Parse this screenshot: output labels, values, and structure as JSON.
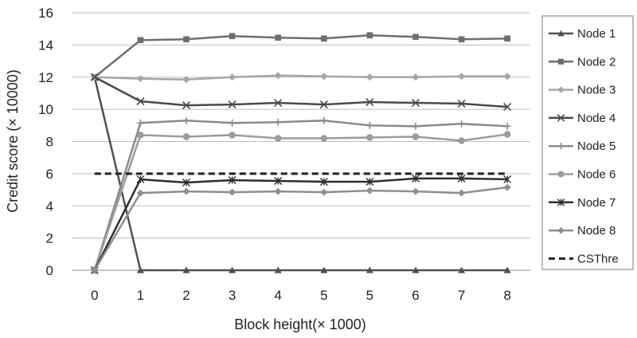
{
  "chart_data": {
    "type": "line",
    "xlabel": "Block height(× 1000)",
    "ylabel": "Credit score (× 10000)",
    "categories": [
      "0",
      "1",
      "2",
      "3",
      "4",
      "5",
      "5",
      "6",
      "7",
      "8"
    ],
    "ylim": [
      0,
      16
    ],
    "yticks": [
      0,
      2,
      4,
      6,
      8,
      10,
      12,
      14,
      16
    ],
    "grid": "horizontal",
    "legend_position": "right",
    "series": [
      {
        "name": "Node 1",
        "marker": "triangle",
        "color": "#505050",
        "dash": "solid",
        "values": [
          12,
          0,
          0,
          0,
          0,
          0,
          0,
          0,
          0,
          0
        ]
      },
      {
        "name": "Node 2",
        "marker": "square",
        "color": "#6e6e6e",
        "dash": "solid",
        "values": [
          12,
          14.3,
          14.35,
          14.55,
          14.45,
          14.4,
          14.6,
          14.5,
          14.35,
          14.4
        ]
      },
      {
        "name": "Node 3",
        "marker": "diamond",
        "color": "#a6a6a6",
        "dash": "solid",
        "values": [
          12,
          11.9,
          11.85,
          12.0,
          12.1,
          12.05,
          12.0,
          12.0,
          12.05,
          12.05
        ]
      },
      {
        "name": "Node 4",
        "marker": "x",
        "color": "#4a4a4a",
        "dash": "solid",
        "values": [
          12,
          10.5,
          10.25,
          10.3,
          10.4,
          10.3,
          10.45,
          10.4,
          10.35,
          10.15
        ]
      },
      {
        "name": "Node 5",
        "marker": "plus",
        "color": "#8a8a8a",
        "dash": "solid",
        "values": [
          0,
          9.15,
          9.3,
          9.15,
          9.2,
          9.3,
          9.0,
          8.95,
          9.1,
          8.95
        ]
      },
      {
        "name": "Node 6",
        "marker": "circle",
        "color": "#9c9c9c",
        "dash": "solid",
        "values": [
          0,
          8.4,
          8.3,
          8.4,
          8.2,
          8.2,
          8.25,
          8.3,
          8.05,
          8.45
        ]
      },
      {
        "name": "Node 7",
        "marker": "asterisk",
        "color": "#2e2e2e",
        "dash": "solid",
        "values": [
          0,
          5.65,
          5.45,
          5.6,
          5.55,
          5.5,
          5.5,
          5.7,
          5.7,
          5.65
        ]
      },
      {
        "name": "Node 8",
        "marker": "diamond",
        "color": "#8e8e8e",
        "dash": "solid",
        "values": [
          0,
          4.8,
          4.9,
          4.85,
          4.9,
          4.85,
          4.95,
          4.9,
          4.8,
          5.15
        ]
      },
      {
        "name": "CSThre",
        "marker": "none",
        "color": "#222222",
        "dash": "dashed",
        "values": [
          6,
          6,
          6,
          6,
          6,
          6,
          6,
          6,
          6,
          6
        ]
      }
    ]
  }
}
